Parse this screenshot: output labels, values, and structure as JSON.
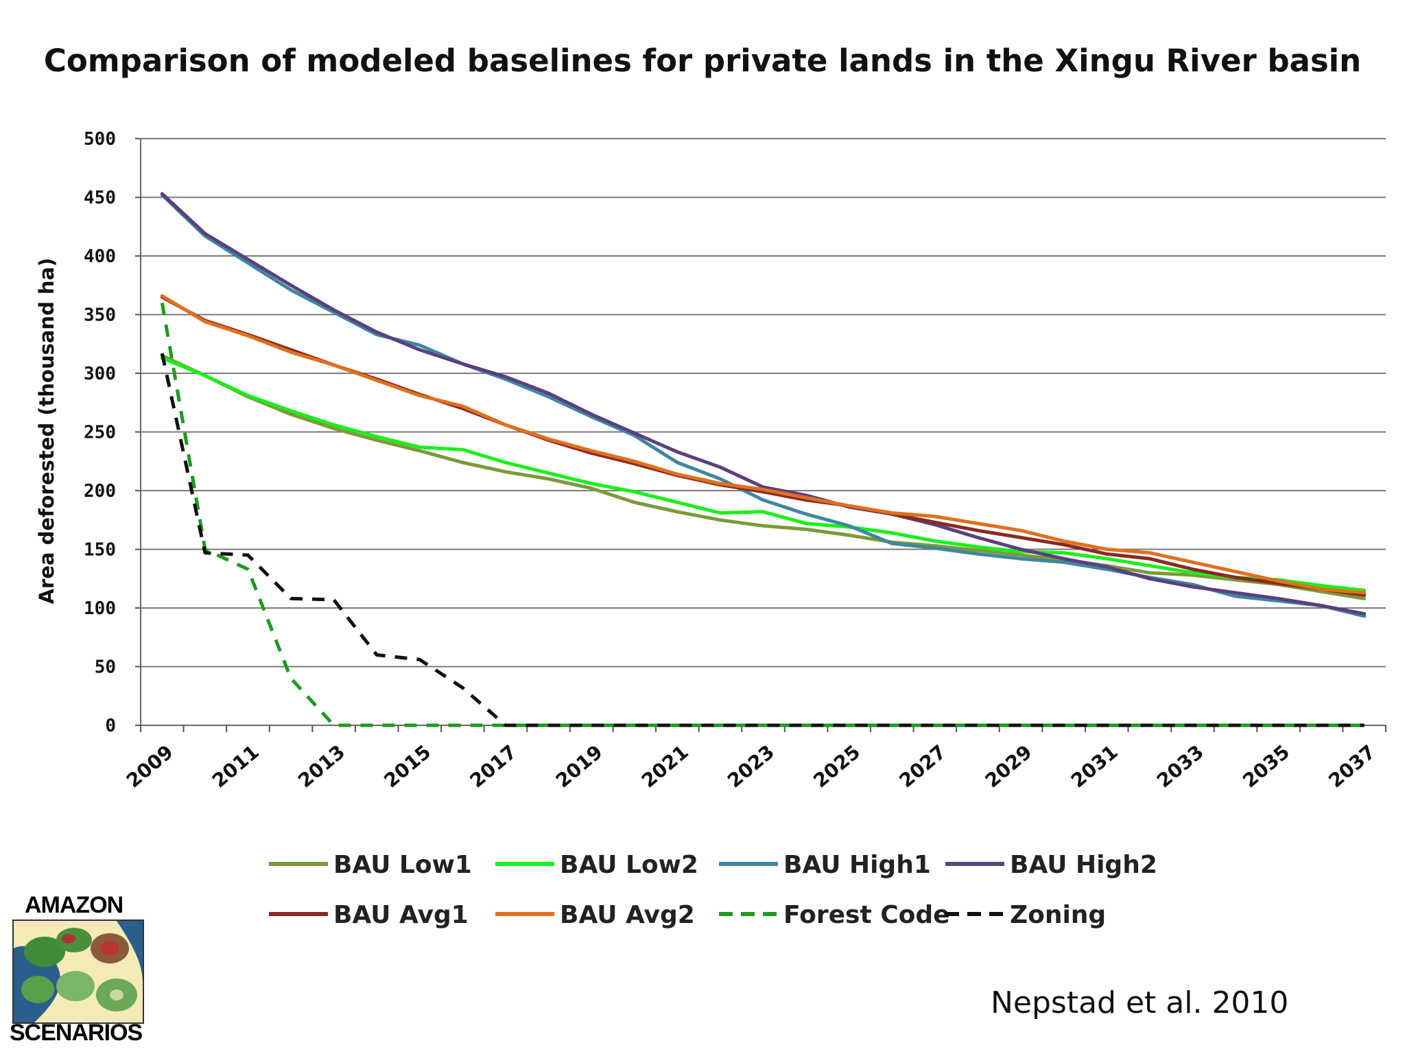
{
  "title": "Comparison of modeled baselines for private lands in the Xingu River basin",
  "citation": "Nepstad et al. 2010",
  "logo": {
    "top_text": "AMAZON",
    "bottom_text": "SCENARIOS"
  },
  "chart_data": {
    "type": "line",
    "title": "Comparison of modeled baselines for private lands in the Xingu River basin",
    "xlabel": "",
    "ylabel": "Area deforested (thousand ha)",
    "ylim": [
      0,
      500
    ],
    "yticks": [
      0,
      50,
      100,
      150,
      200,
      250,
      300,
      350,
      400,
      450,
      500
    ],
    "xtick_labels": [
      "2009",
      "2011",
      "2013",
      "2015",
      "2017",
      "2019",
      "2021",
      "2023",
      "2025",
      "2027",
      "2029",
      "2031",
      "2033",
      "2035",
      "2037"
    ],
    "grid": "horizontal",
    "legend_position": "bottom",
    "x": [
      2009,
      2010,
      2011,
      2012,
      2013,
      2014,
      2015,
      2016,
      2017,
      2018,
      2019,
      2020,
      2021,
      2022,
      2023,
      2024,
      2025,
      2026,
      2027,
      2028,
      2029,
      2030,
      2031,
      2032,
      2033,
      2034,
      2035,
      2036,
      2037
    ],
    "series": [
      {
        "name": "BAU Low1",
        "color": "#7a9a3a",
        "dash": "solid",
        "values": [
          315,
          298,
          280,
          265,
          253,
          243,
          234,
          224,
          216,
          210,
          202,
          190,
          182,
          175,
          170,
          167,
          162,
          156,
          153,
          149,
          145,
          141,
          136,
          130,
          128,
          124,
          120,
          114,
          108
        ]
      },
      {
        "name": "BAU Low2",
        "color": "#19f019",
        "dash": "solid",
        "values": [
          313,
          298,
          281,
          268,
          256,
          246,
          237,
          235,
          224,
          215,
          206,
          199,
          190,
          181,
          182,
          172,
          169,
          164,
          157,
          152,
          148,
          147,
          142,
          136,
          130,
          126,
          124,
          119,
          115
        ]
      },
      {
        "name": "BAU High1",
        "color": "#3f86a0",
        "dash": "solid",
        "values": [
          452,
          417,
          394,
          371,
          352,
          333,
          324,
          308,
          295,
          280,
          263,
          247,
          224,
          210,
          192,
          180,
          170,
          155,
          151,
          146,
          142,
          139,
          133,
          126,
          120,
          110,
          106,
          102,
          93
        ]
      },
      {
        "name": "BAU High2",
        "color": "#5b3f7e",
        "dash": "solid",
        "values": [
          453,
          419,
          397,
          375,
          354,
          335,
          320,
          308,
          297,
          283,
          265,
          249,
          233,
          220,
          203,
          196,
          186,
          180,
          171,
          160,
          150,
          142,
          135,
          125,
          118,
          113,
          108,
          102,
          95
        ]
      },
      {
        "name": "BAU Avg1",
        "color": "#8a2a22",
        "dash": "solid",
        "values": [
          365,
          345,
          333,
          320,
          307,
          295,
          282,
          270,
          256,
          243,
          232,
          223,
          213,
          205,
          199,
          192,
          187,
          180,
          173,
          166,
          160,
          154,
          146,
          142,
          133,
          126,
          121,
          116,
          111
        ]
      },
      {
        "name": "BAU Avg2",
        "color": "#e0701e",
        "dash": "solid",
        "values": [
          366,
          344,
          332,
          318,
          307,
          294,
          281,
          272,
          256,
          244,
          234,
          225,
          214,
          206,
          201,
          194,
          187,
          181,
          178,
          172,
          166,
          157,
          150,
          147,
          139,
          131,
          123,
          116,
          113
        ]
      },
      {
        "name": "Forest Code",
        "color": "#1e9a1e",
        "dash": "dashed",
        "values": [
          360,
          150,
          133,
          40,
          0,
          0,
          0,
          0,
          0,
          0,
          0,
          0,
          0,
          0,
          0,
          0,
          0,
          0,
          0,
          0,
          0,
          0,
          0,
          0,
          0,
          0,
          0,
          0,
          0
        ]
      },
      {
        "name": "Zoning",
        "color": "#111111",
        "dash": "dashed",
        "values": [
          317,
          147,
          145,
          108,
          107,
          60,
          56,
          32,
          0,
          0,
          0,
          0,
          0,
          0,
          0,
          0,
          0,
          0,
          0,
          0,
          0,
          0,
          0,
          0,
          0,
          0,
          0,
          0,
          0
        ]
      }
    ]
  }
}
